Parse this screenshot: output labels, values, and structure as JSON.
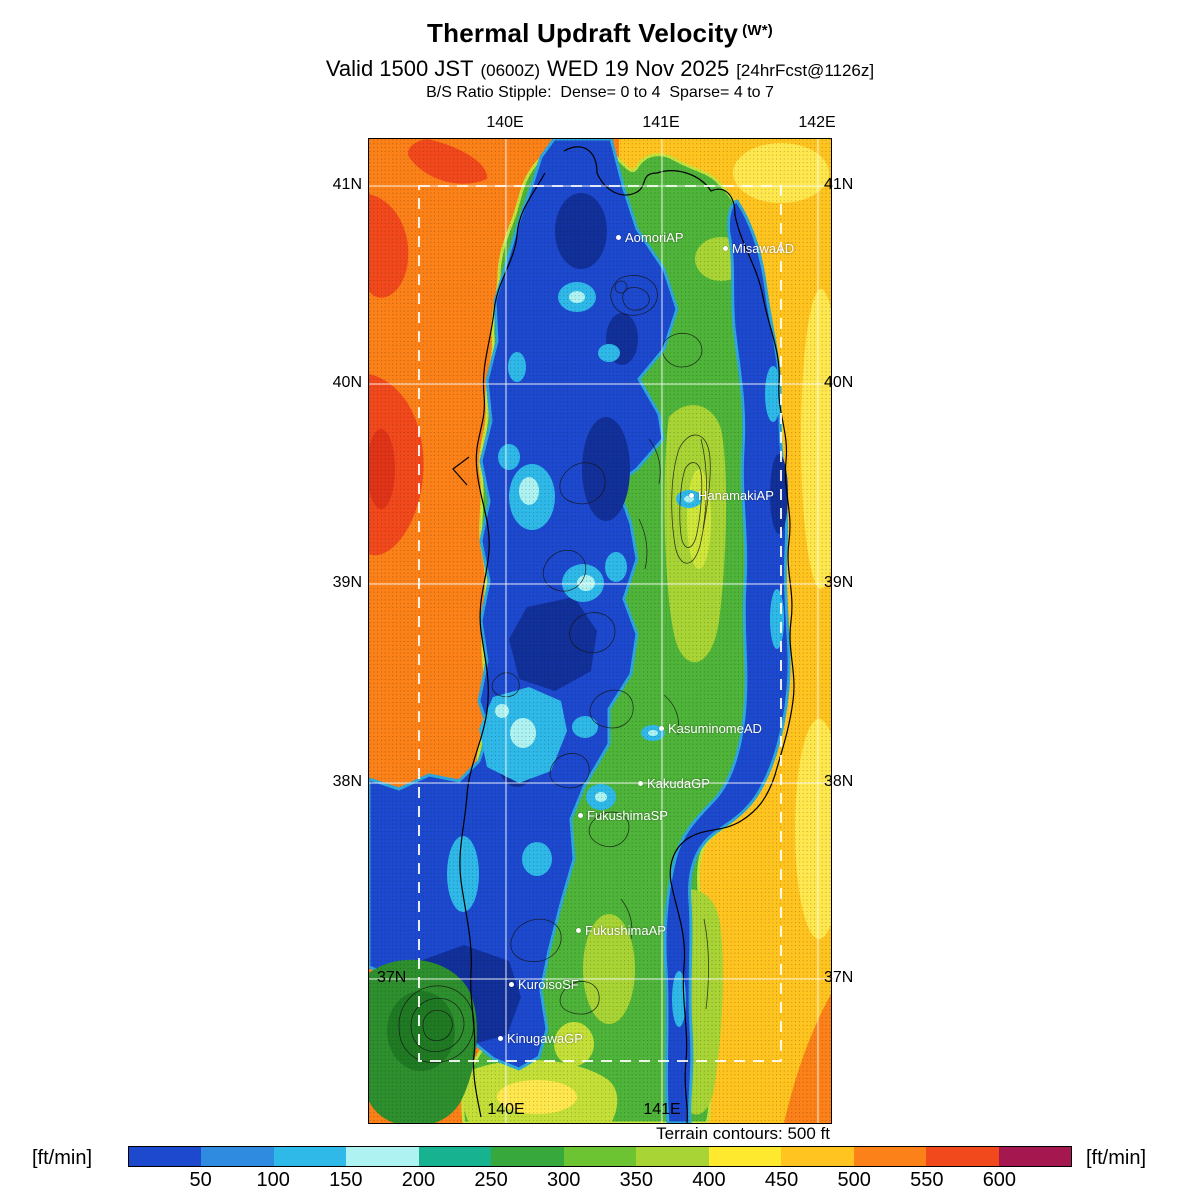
{
  "header": {
    "title": "Thermal Updraft Velocity",
    "title_suffix": "(W*)",
    "valid_prefix": "Valid 1500 JST",
    "valid_zulu": "(0600Z)",
    "valid_date": "WED 19 Nov 2025",
    "valid_fcst": "[24hrFcst@1126z]",
    "stipple_note": "B/S Ratio Stipple:  Dense= 0 to 4  Sparse= 4 to 7"
  },
  "map": {
    "lon_top": [
      "140E",
      "141E",
      "142E"
    ],
    "lon_bottom": [
      "140E",
      "141E"
    ],
    "lat_left": [
      "41N",
      "40N",
      "39N",
      "38N",
      "37N"
    ],
    "lat_right": [
      "41N",
      "40N",
      "39N",
      "38N",
      "37N"
    ],
    "stations": [
      {
        "label": "AomoriAP"
      },
      {
        "label": "MisawaAD"
      },
      {
        "label": "HanamakiAP"
      },
      {
        "label": "KasuminomeAD"
      },
      {
        "label": "KakudaGP"
      },
      {
        "label": "FukushimaSP"
      },
      {
        "label": "FukushimaAP"
      },
      {
        "label": "KuroisoSF"
      },
      {
        "label": "KinugawaGP"
      }
    ],
    "terrain_note": "Terrain contours: 500 ft"
  },
  "legend": {
    "unit_left": "[ft/min]",
    "unit_right": "[ft/min]",
    "ticks": [
      "50",
      "100",
      "150",
      "200",
      "250",
      "300",
      "350",
      "400",
      "450",
      "500",
      "550",
      "600"
    ],
    "colors": [
      "#1d49cf",
      "#2e8be0",
      "#2fb9e8",
      "#aef2f2",
      "#17b391",
      "#37a83c",
      "#6cc433",
      "#a8d435",
      "#ffe92e",
      "#ffc41f",
      "#fb8118",
      "#f2491c",
      "#a5174f"
    ]
  }
}
